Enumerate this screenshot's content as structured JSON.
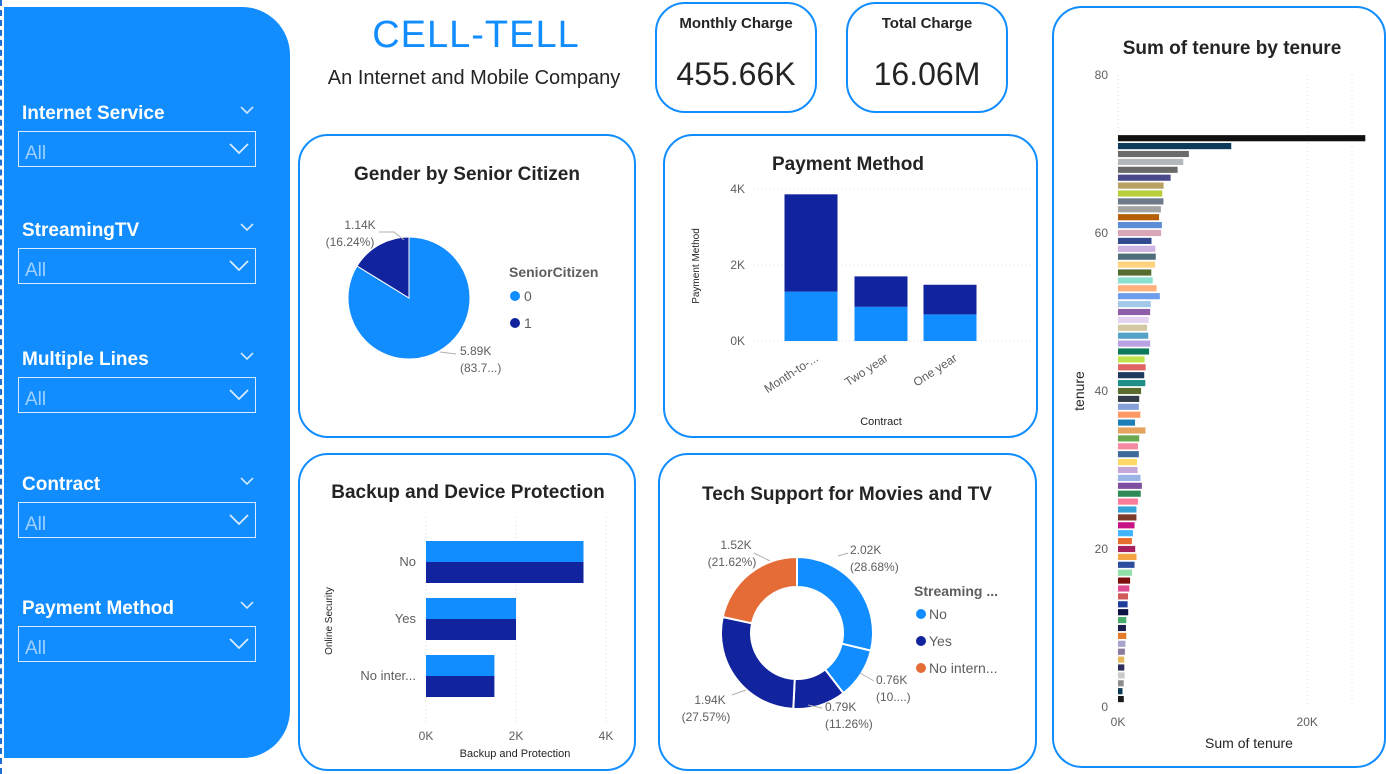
{
  "brand": {
    "title": "CELL-TELL",
    "subtitle": "An Internet and Mobile Company"
  },
  "kpis": [
    {
      "label": "Monthly Charge",
      "value": "455.66K"
    },
    {
      "label": "Total Charge",
      "value": "16.06M"
    }
  ],
  "slicers": [
    {
      "title": "Internet Service",
      "value": "All"
    },
    {
      "title": "StreamingTV",
      "value": "All"
    },
    {
      "title": "Multiple Lines",
      "value": "All"
    },
    {
      "title": "Contract",
      "value": "All"
    },
    {
      "title": "Payment Method",
      "value": "All"
    }
  ],
  "colors": {
    "accent": "#118dff",
    "dark": "#12239e",
    "orange": "#e66c37"
  },
  "chart_data": [
    {
      "id": "gender_senior",
      "type": "pie",
      "title": "Gender by Senior Citizen",
      "legend_title": "SeniorCitizen",
      "legend_position": "right",
      "slices": [
        {
          "name": "0",
          "value": 5890,
          "label": "5.89K",
          "pct": "(83.7...)",
          "color": "#118dff"
        },
        {
          "name": "1",
          "value": 1140,
          "label": "1.14K",
          "pct": "(16.24%)",
          "color": "#12239e"
        }
      ]
    },
    {
      "id": "payment_method",
      "type": "bar",
      "orientation": "vertical",
      "stacked": true,
      "title": "Payment Method",
      "xlabel": "Contract",
      "ylabel": "Payment Method",
      "categories": [
        "Month-to-...",
        "Two year",
        "One year"
      ],
      "series": [
        {
          "values": [
            1300,
            900,
            700
          ],
          "color": "#118dff"
        },
        {
          "values": [
            2560,
            800,
            780
          ],
          "color": "#12239e"
        }
      ],
      "ylim": [
        0,
        4000
      ],
      "yticks": [
        {
          "v": 0,
          "label": "0K"
        },
        {
          "v": 2000,
          "label": "2K"
        },
        {
          "v": 4000,
          "label": "4K"
        }
      ]
    },
    {
      "id": "backup_protection",
      "type": "bar",
      "orientation": "horizontal",
      "title": "Backup and Device Protection",
      "xlabel": "Backup and Protection",
      "ylabel": "Online Security",
      "categories": [
        "No",
        "Yes",
        "No inter..."
      ],
      "series": [
        {
          "values": [
            3500,
            2000,
            1520
          ],
          "color": "#118dff"
        },
        {
          "values": [
            3500,
            2000,
            1520
          ],
          "color": "#12239e"
        }
      ],
      "xlim": [
        0,
        4000
      ],
      "xticks": [
        {
          "v": 0,
          "label": "0K"
        },
        {
          "v": 2000,
          "label": "2K"
        },
        {
          "v": 4000,
          "label": "4K"
        }
      ]
    },
    {
      "id": "tech_support",
      "type": "pie",
      "donut": true,
      "title": "Tech Support for Movies and TV",
      "legend_title": "Streaming ...",
      "legend_position": "right",
      "slices": [
        {
          "name": "No",
          "value": 2020,
          "label": "2.02K",
          "pct": "(28.68%)",
          "color": "#118dff"
        },
        {
          "name": "",
          "value": 760,
          "label": "0.76K",
          "pct": "(10....)",
          "color": "#118dff"
        },
        {
          "name": "",
          "value": 790,
          "label": "0.79K",
          "pct": "(11.26%)",
          "color": "#12239e"
        },
        {
          "name": "Yes",
          "value": 1940,
          "label": "1.94K",
          "pct": "(27.57%)",
          "color": "#12239e"
        },
        {
          "name": "No intern...",
          "value": 1520,
          "label": "1.52K",
          "pct": "(21.62%)",
          "color": "#e66c37"
        }
      ],
      "legend": [
        {
          "name": "No",
          "color": "#118dff"
        },
        {
          "name": "Yes",
          "color": "#12239e"
        },
        {
          "name": "No intern...",
          "color": "#e66c37"
        }
      ]
    },
    {
      "id": "tenure",
      "type": "bar",
      "orientation": "horizontal",
      "title": "Sum of tenure by tenure",
      "xlabel": "Sum of tenure",
      "ylabel": "tenure",
      "xlim": [
        0,
        26000
      ],
      "ylim": [
        0,
        80
      ],
      "xticks": [
        {
          "v": 0,
          "label": "0K"
        },
        {
          "v": 20000,
          "label": "20K"
        }
      ],
      "yticks": [
        {
          "v": 0,
          "label": "0"
        },
        {
          "v": 20,
          "label": "20"
        },
        {
          "v": 40,
          "label": "40"
        },
        {
          "v": 60,
          "label": "60"
        },
        {
          "v": 80,
          "label": "80"
        }
      ],
      "grid": true,
      "tenure": [
        1,
        2,
        3,
        4,
        5,
        6,
        7,
        8,
        9,
        10,
        11,
        12,
        13,
        14,
        15,
        16,
        17,
        18,
        19,
        20,
        21,
        22,
        23,
        24,
        25,
        26,
        27,
        28,
        29,
        30,
        31,
        32,
        33,
        34,
        35,
        36,
        37,
        38,
        39,
        40,
        41,
        42,
        43,
        44,
        45,
        46,
        47,
        48,
        49,
        50,
        51,
        52,
        53,
        54,
        55,
        56,
        57,
        58,
        59,
        60,
        61,
        62,
        63,
        64,
        65,
        66,
        67,
        68,
        69,
        70,
        71,
        72
      ],
      "values": [
        613,
        476,
        600,
        704,
        665,
        660,
        728,
        784,
        875,
        840,
        880,
        1080,
        1014,
        1064,
        1200,
        1280,
        1479,
        1746,
        1957,
        1820,
        1470,
        1584,
        1748,
        1949,
        1950,
        2106,
        2403,
        2520,
        2378,
        2070,
        2006,
        2201,
        2112,
        2244,
        2904,
        1800,
        2368,
        2204,
        2244,
        2440,
        2886,
        2772,
        2924,
        2816,
        3285,
        3404,
        3196,
        3072,
        3234,
        3400,
        3468,
        4420,
        4081,
        3672,
        3520,
        3920,
        3990,
        3944,
        3540,
        4560,
        4636,
        4340,
        4536,
        4800,
        4680,
        4818,
        5561,
        6300,
        6900,
        7490,
        11970,
        26136
      ],
      "colors": [
        "#1b1b1b",
        "#0b3a55",
        "#8c8c8c",
        "#cbcbcb",
        "#2d2d5a",
        "#e2b85a",
        "#8a7a9f",
        "#a7a4cc",
        "#e57a2a",
        "#1c1f4d",
        "#48ac6c",
        "#0c1445",
        "#1f3b9b",
        "#d05b5b",
        "#e04c94",
        "#7d0f0f",
        "#90e0aa",
        "#2d4d9f",
        "#f2a542",
        "#a5205f",
        "#e76e2f",
        "#41b4ff",
        "#c71585",
        "#7c3a28",
        "#36a2d8",
        "#ff7b9c",
        "#2e8b57",
        "#7f4fa2",
        "#9ab4e8",
        "#c4a6d8",
        "#ffd966",
        "#3e6a9a",
        "#f58aa2",
        "#6aa84f",
        "#e4a45d",
        "#1c7fb8",
        "#ff9966",
        "#87a0d8",
        "#333e4b",
        "#5b6b2c",
        "#1f8e89",
        "#223a5e",
        "#e06666",
        "#bfe34b",
        "#0c7a5a",
        "#b9a2e2",
        "#55a3c6",
        "#d4c8a3",
        "#e3d3f0",
        "#8d5fa8",
        "#a3c9e8",
        "#6d9eeb",
        "#ffb07c",
        "#8be0d1",
        "#556b2f",
        "#ffd27f",
        "#4f6d7a",
        "#ccb3e0",
        "#314a8e",
        "#d8a6b6",
        "#5b8dd6",
        "#b45f06",
        "#a3a3a3",
        "#6c7a89",
        "#b8cf3a",
        "#b8a062",
        "#4a4a8a",
        "#6a6a6a",
        "#b3b7ba",
        "#6b6b6b",
        "#0e3b5a",
        "#111111"
      ]
    }
  ]
}
